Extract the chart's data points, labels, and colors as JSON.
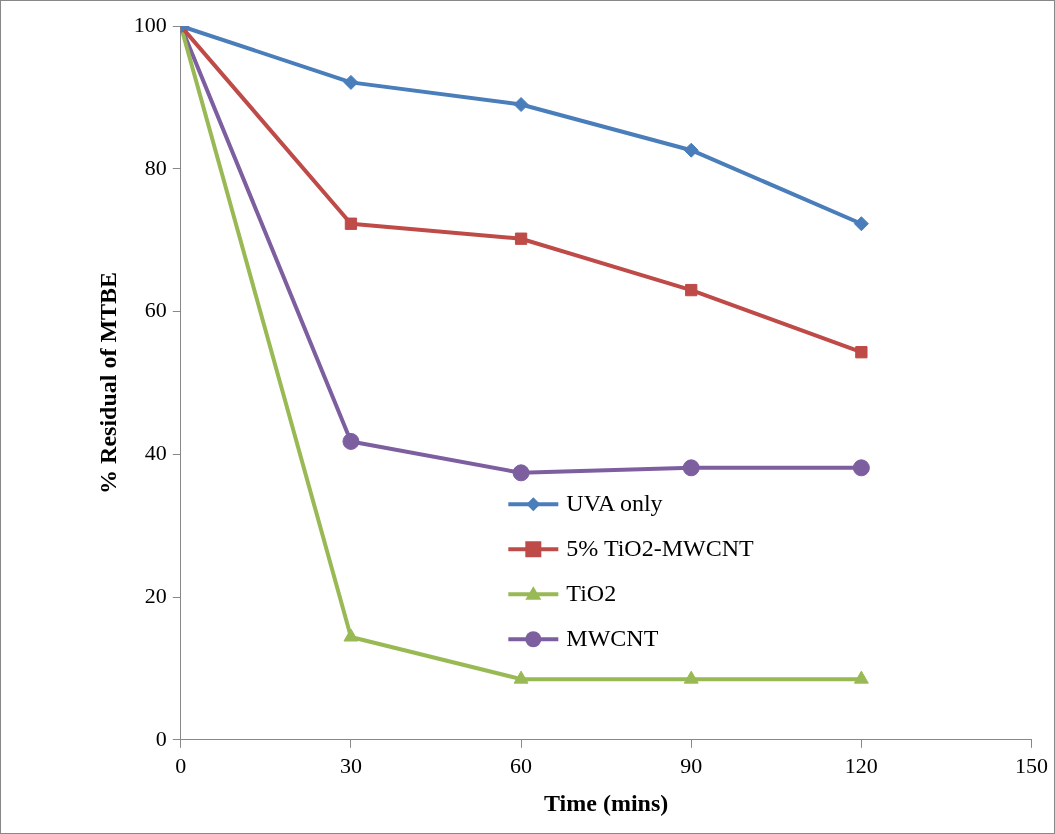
{
  "chart_data": {
    "type": "line",
    "xlabel": "Time (mins)",
    "ylabel": "% Residual of MTBE",
    "x": [
      0,
      30,
      60,
      90,
      120
    ],
    "xlim": [
      0,
      150
    ],
    "xticks": [
      0,
      30,
      60,
      90,
      120,
      150
    ],
    "ylim": [
      0,
      100
    ],
    "yticks": [
      0,
      20,
      40,
      60,
      80,
      100
    ],
    "grid": false,
    "legend": "center",
    "line_style": "solid",
    "series": [
      {
        "name": "UVA only",
        "color": "#4a7ebb",
        "marker": "diamond",
        "values": [
          100,
          92.1,
          89.0,
          82.6,
          72.3
        ]
      },
      {
        "name": "5% TiO2-MWCNT",
        "color": "#be4b48",
        "marker": "square",
        "values": [
          100,
          72.3,
          70.2,
          63.0,
          54.3
        ]
      },
      {
        "name": "TiO2",
        "color": "#98b954",
        "marker": "triangle",
        "values": [
          100,
          14.4,
          8.5,
          8.5,
          8.5
        ]
      },
      {
        "name": "MWCNT",
        "color": "#7d5fa0",
        "marker": "circle",
        "values": [
          100,
          41.8,
          37.4,
          38.1,
          38.1
        ]
      }
    ]
  }
}
